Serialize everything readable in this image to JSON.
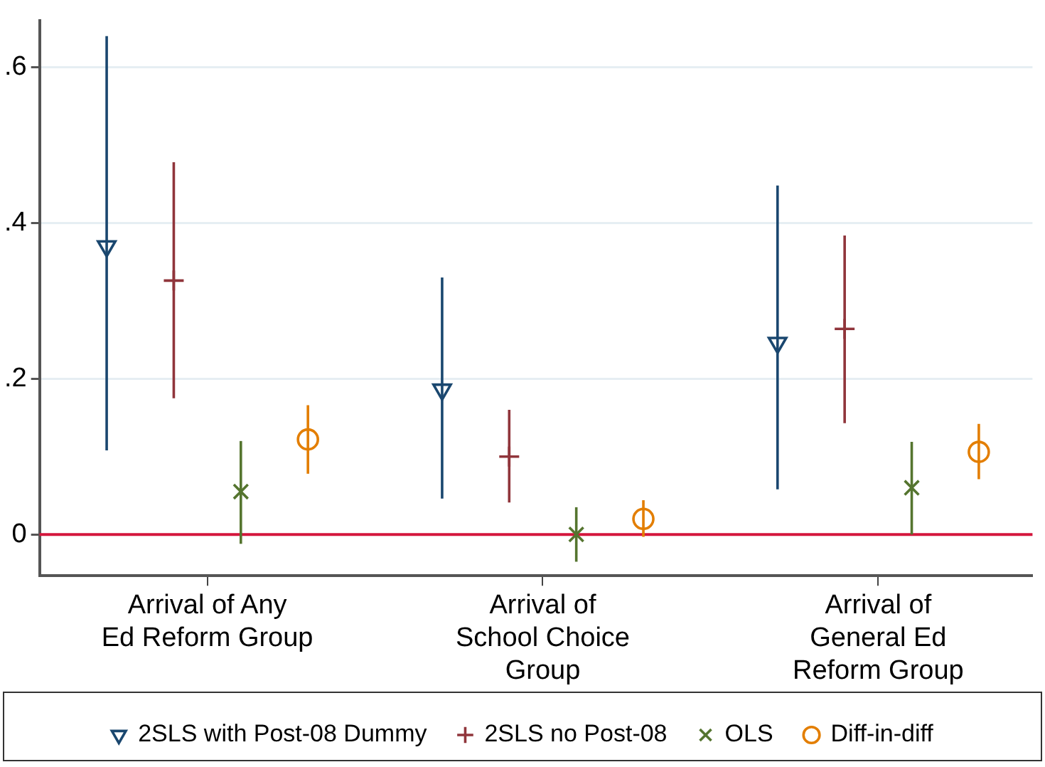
{
  "chart_data": {
    "type": "scatter",
    "categories": [
      "Arrival of Any\nEd Reform Group",
      "Arrival of\nSchool Choice\nGroup",
      "Arrival of\nGeneral Ed\nReform Group"
    ],
    "series": [
      {
        "name": "2SLS with Post-08 Dummy",
        "color": "#1a476f",
        "marker": "triangle",
        "values": [
          0.37,
          0.186,
          0.246
        ],
        "errors": [
          [
            0.108,
            0.64
          ],
          [
            0.046,
            0.33
          ],
          [
            0.058,
            0.448
          ]
        ]
      },
      {
        "name": "2SLS no Post-08",
        "color": "#90353b",
        "marker": "cross",
        "values": [
          0.326,
          0.1,
          0.264
        ],
        "errors": [
          [
            0.175,
            0.478
          ],
          [
            0.041,
            0.16
          ],
          [
            0.143,
            0.384
          ]
        ]
      },
      {
        "name": "OLS",
        "color": "#55752f",
        "marker": "x",
        "values": [
          0.055,
          0.0,
          0.06
        ],
        "errors": [
          [
            -0.012,
            0.12
          ],
          [
            -0.035,
            0.035
          ],
          [
            0.0,
            0.119
          ]
        ]
      },
      {
        "name": "Diff-in-diff",
        "color": "#e37e00",
        "marker": "circle",
        "values": [
          0.122,
          0.02,
          0.106
        ],
        "errors": [
          [
            0.078,
            0.166
          ],
          [
            -0.003,
            0.044
          ],
          [
            0.071,
            0.142
          ]
        ]
      }
    ],
    "ylim": [
      -0.053,
      0.66
    ],
    "yticks": [
      {
        "value": 0,
        "label": "0"
      },
      {
        "value": 0.2,
        "label": ".2"
      },
      {
        "value": 0.4,
        "label": ".4"
      },
      {
        "value": 0.6,
        "label": ".6"
      }
    ],
    "ref_lines": [
      {
        "axis": "y",
        "value": 0,
        "color": "#d4163c"
      }
    ],
    "grid": "y",
    "legend": "bottom"
  }
}
